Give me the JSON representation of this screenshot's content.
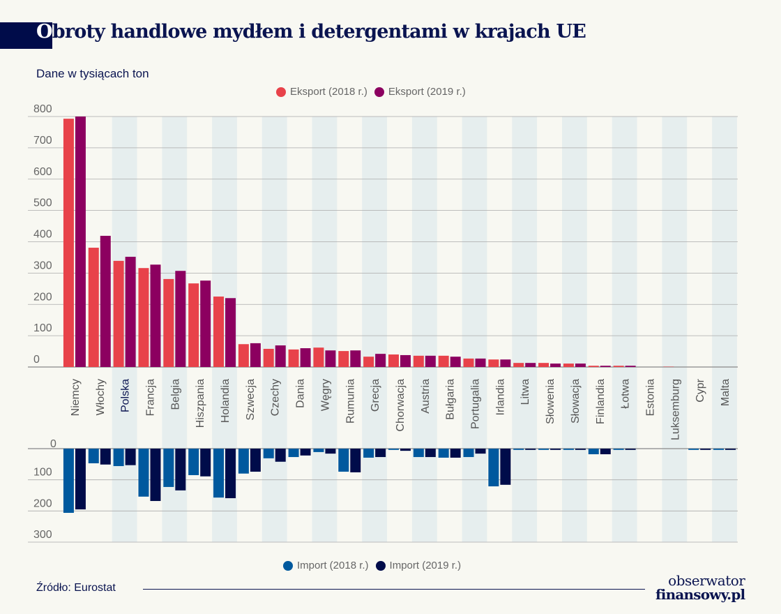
{
  "header": {
    "title_first": "O",
    "title_rest": "broty handlowe mydłem i detergentami w krajach UE",
    "subtitle": "Dane w tysiącach ton"
  },
  "footer": {
    "source": "Źródło: Eurostat",
    "logo_line1": "obserwator",
    "logo_line2": "finansowy.pl"
  },
  "colors": {
    "export2018": "#e8424a",
    "export2019": "#8c0060",
    "import2018": "#00599e",
    "import2019": "#000c4a",
    "highlight_label": "#0a1450",
    "column_shade": "#e6eeee"
  },
  "chart_data": [
    {
      "type": "bar",
      "title": "Obroty handlowe mydłem i detergentami w krajach UE",
      "ylabel": "Dane w tysiącach ton",
      "ylim": [
        0,
        800
      ],
      "yticks": [
        "800",
        "700",
        "600",
        "500",
        "400",
        "300",
        "200",
        "100",
        "0"
      ],
      "grid": true,
      "legend": "top-center",
      "categories": [
        "Niemcy",
        "Włochy",
        "Polska",
        "Francja",
        "Belgia",
        "Hiszpania",
        "Holandia",
        "Szwecja",
        "Czechy",
        "Dania",
        "Węgry",
        "Rumunia",
        "Grecja",
        "Chorwacja",
        "Austria",
        "Bułgaria",
        "Portugalia",
        "Irlandia",
        "Litwa",
        "Słowenia",
        "Słowacja",
        "Finlandia",
        "Łotwa",
        "Estonia",
        "Luksemburg",
        "Cypr",
        "Malta"
      ],
      "highlight_category": "Polska",
      "series": [
        {
          "name": "Eksport (2018 r.)",
          "values": [
            793,
            381,
            339,
            316,
            281,
            267,
            225,
            73,
            58,
            56,
            62,
            51,
            33,
            40,
            36,
            36,
            27,
            24,
            13,
            13,
            11,
            4,
            4,
            0,
            1,
            0,
            0
          ]
        },
        {
          "name": "Eksport (2019 r.)",
          "values": [
            800,
            419,
            352,
            327,
            307,
            276,
            220,
            76,
            69,
            60,
            53,
            53,
            42,
            38,
            36,
            33,
            27,
            24,
            13,
            11,
            11,
            4,
            4,
            0,
            0,
            0,
            0
          ]
        }
      ]
    },
    {
      "type": "bar",
      "ylim": [
        0,
        300
      ],
      "yticks": [
        "0",
        "100",
        "200",
        "300"
      ],
      "grid": true,
      "legend": "bottom-center",
      "direction": "downward",
      "series": [
        {
          "name": "Import (2018 r.)",
          "values": [
            206,
            47,
            56,
            154,
            123,
            85,
            157,
            80,
            31,
            27,
            11,
            74,
            29,
            4,
            27,
            29,
            27,
            121,
            4,
            4,
            4,
            18,
            4,
            0,
            0,
            4,
            4
          ]
        },
        {
          "name": "Import (2019 r.)",
          "values": [
            195,
            51,
            53,
            168,
            134,
            89,
            159,
            74,
            42,
            22,
            16,
            76,
            27,
            7,
            27,
            29,
            16,
            116,
            4,
            4,
            4,
            18,
            4,
            0,
            0,
            4,
            4
          ]
        }
      ]
    }
  ]
}
